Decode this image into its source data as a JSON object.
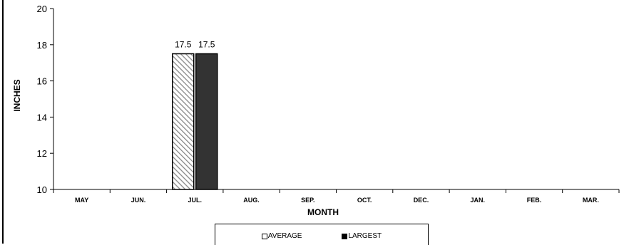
{
  "chart_data": {
    "type": "bar",
    "categories": [
      "MAY",
      "JUN.",
      "JUL.",
      "AUG.",
      "SEP.",
      "OCT.",
      "DEC.",
      "JAN.",
      "FEB.",
      "MAR."
    ],
    "series": [
      {
        "name": "AVERAGE",
        "values": [
          null,
          null,
          17.5,
          null,
          null,
          null,
          null,
          null,
          null,
          null
        ],
        "color": "#ffffff",
        "pattern": "diagonal-hatch"
      },
      {
        "name": "LARGEST",
        "values": [
          null,
          null,
          17.5,
          null,
          null,
          null,
          null,
          null,
          null,
          null
        ],
        "color": "#333333"
      }
    ],
    "data_labels": [
      "17.5",
      "17.5"
    ],
    "xlabel": "MONTH",
    "ylabel": "INCHES",
    "ylim": [
      10,
      20
    ],
    "yticks": [
      "10",
      "12",
      "14",
      "16",
      "18",
      "20"
    ],
    "grid": false,
    "legend_position": "bottom"
  }
}
